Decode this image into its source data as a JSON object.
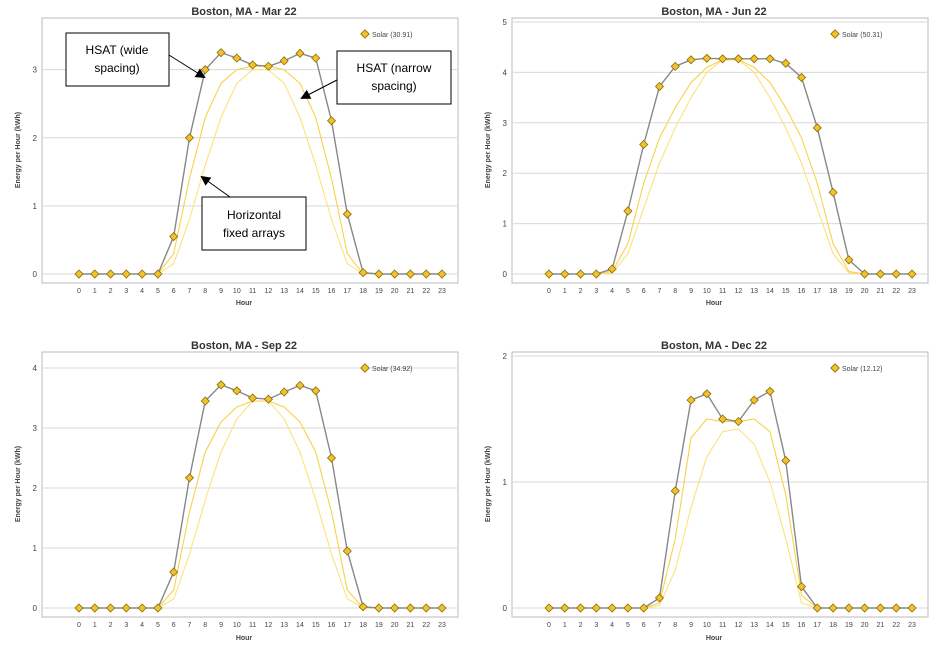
{
  "colors": {
    "main_line": "#888888",
    "marker_fill": "#f2c12e",
    "marker_stroke": "#8a6b00",
    "fixed_line": "#fde27a",
    "narrow_line": "#f7d24a",
    "grid": "#d9d9d9"
  },
  "chart_data": [
    {
      "type": "line",
      "title": "Boston, MA - Mar 22",
      "xlabel": "Hour",
      "ylabel": "Energy per Hour (kWh)",
      "ylim": [
        0,
        3.7
      ],
      "yticks": [
        0,
        1,
        2,
        3
      ],
      "x": [
        0,
        1,
        2,
        3,
        4,
        5,
        6,
        7,
        8,
        9,
        10,
        11,
        12,
        13,
        14,
        15,
        16,
        17,
        18,
        19,
        20,
        21,
        22,
        23
      ],
      "legend": "Solar (30.91)",
      "series": [
        {
          "name": "Solar",
          "values": [
            0,
            0,
            0,
            0,
            0,
            0,
            0.55,
            2.0,
            3.0,
            3.25,
            3.17,
            3.07,
            3.05,
            3.13,
            3.24,
            3.17,
            2.25,
            0.88,
            0.02,
            0,
            0,
            0,
            0,
            0
          ]
        },
        {
          "name": "HSAT (narrow spacing)",
          "values": [
            0,
            0,
            0,
            0,
            0,
            0,
            0.3,
            1.4,
            2.3,
            2.8,
            3.0,
            3.05,
            3.05,
            3.0,
            2.8,
            2.3,
            1.4,
            0.3,
            0,
            0,
            0,
            0,
            0,
            0
          ]
        },
        {
          "name": "Horizontal fixed arrays",
          "values": [
            0,
            0,
            0,
            0,
            0,
            0,
            0.15,
            0.8,
            1.6,
            2.3,
            2.8,
            3.0,
            3.0,
            2.8,
            2.3,
            1.6,
            0.8,
            0.15,
            0,
            0,
            0,
            0,
            0,
            0
          ]
        }
      ],
      "annotations": [
        {
          "label": "HSAT (wide spacing)",
          "lines": [
            "HSAT (wide",
            "spacing)"
          ]
        },
        {
          "label": "HSAT (narrow spacing)",
          "lines": [
            "HSAT (narrow",
            "spacing)"
          ]
        },
        {
          "label": "Horizontal fixed arrays",
          "lines": [
            "Horizontal",
            "fixed arrays"
          ]
        }
      ]
    },
    {
      "type": "line",
      "title": "Boston, MA - Jun 22",
      "xlabel": "Hour",
      "ylabel": "Energy per Hour (kWh)",
      "ylim": [
        0,
        5
      ],
      "yticks": [
        0,
        1,
        2,
        3,
        4,
        5
      ],
      "x": [
        0,
        1,
        2,
        3,
        4,
        5,
        6,
        7,
        8,
        9,
        10,
        11,
        12,
        13,
        14,
        15,
        16,
        17,
        18,
        19,
        20,
        21,
        22,
        23
      ],
      "legend": "Solar (50.31)",
      "series": [
        {
          "name": "Solar",
          "values": [
            0,
            0,
            0,
            0,
            0.1,
            1.25,
            2.57,
            3.72,
            4.12,
            4.25,
            4.28,
            4.27,
            4.27,
            4.27,
            4.27,
            4.18,
            3.9,
            2.9,
            1.62,
            0.28,
            0,
            0,
            0,
            0
          ]
        },
        {
          "name": "HSAT (narrow spacing)",
          "values": [
            0,
            0,
            0,
            0,
            0.05,
            0.6,
            1.8,
            2.7,
            3.3,
            3.8,
            4.1,
            4.25,
            4.25,
            4.1,
            3.8,
            3.3,
            2.7,
            1.8,
            0.6,
            0.05,
            0,
            0,
            0,
            0
          ]
        },
        {
          "name": "Horizontal fixed arrays",
          "values": [
            0,
            0,
            0,
            0,
            0.02,
            0.4,
            1.3,
            2.2,
            2.9,
            3.5,
            4.0,
            4.25,
            4.25,
            4.0,
            3.5,
            2.9,
            2.2,
            1.3,
            0.4,
            0.02,
            0,
            0,
            0,
            0
          ]
        }
      ]
    },
    {
      "type": "line",
      "title": "Boston, MA - Sep 22",
      "xlabel": "Hour",
      "ylabel": "Energy per Hour (kWh)",
      "ylim": [
        0,
        4.2
      ],
      "yticks": [
        0,
        1,
        2,
        3,
        4
      ],
      "x": [
        0,
        1,
        2,
        3,
        4,
        5,
        6,
        7,
        8,
        9,
        10,
        11,
        12,
        13,
        14,
        15,
        16,
        17,
        18,
        19,
        20,
        21,
        22,
        23
      ],
      "legend": "Solar (34.92)",
      "series": [
        {
          "name": "Solar",
          "values": [
            0,
            0,
            0,
            0,
            0,
            0,
            0.6,
            2.17,
            3.45,
            3.72,
            3.62,
            3.5,
            3.48,
            3.6,
            3.71,
            3.62,
            2.5,
            0.95,
            0.02,
            0,
            0,
            0,
            0,
            0
          ]
        },
        {
          "name": "HSAT (narrow spacing)",
          "values": [
            0,
            0,
            0,
            0,
            0,
            0,
            0.3,
            1.6,
            2.6,
            3.1,
            3.35,
            3.45,
            3.45,
            3.35,
            3.1,
            2.6,
            1.6,
            0.3,
            0,
            0,
            0,
            0,
            0,
            0
          ]
        },
        {
          "name": "Horizontal fixed arrays",
          "values": [
            0,
            0,
            0,
            0,
            0,
            0,
            0.15,
            0.9,
            1.8,
            2.6,
            3.15,
            3.45,
            3.45,
            3.15,
            2.6,
            1.8,
            0.9,
            0.15,
            0,
            0,
            0,
            0,
            0,
            0
          ]
        }
      ]
    },
    {
      "type": "line",
      "title": "Boston, MA - Dec 22",
      "xlabel": "Hour",
      "ylabel": "Energy per Hour (kWh)",
      "ylim": [
        0,
        2
      ],
      "yticks": [
        0,
        1,
        2
      ],
      "x": [
        0,
        1,
        2,
        3,
        4,
        5,
        6,
        7,
        8,
        9,
        10,
        11,
        12,
        13,
        14,
        15,
        16,
        17,
        18,
        19,
        20,
        21,
        22,
        23
      ],
      "legend": "Solar (12.12)",
      "series": [
        {
          "name": "Solar",
          "values": [
            0,
            0,
            0,
            0,
            0,
            0,
            0,
            0.08,
            0.93,
            1.65,
            1.7,
            1.5,
            1.48,
            1.65,
            1.72,
            1.17,
            0.17,
            0,
            0,
            0,
            0,
            0,
            0,
            0
          ]
        },
        {
          "name": "HSAT (narrow spacing)",
          "values": [
            0,
            0,
            0,
            0,
            0,
            0,
            0,
            0.04,
            0.55,
            1.35,
            1.5,
            1.48,
            1.48,
            1.5,
            1.4,
            0.9,
            0.1,
            0,
            0,
            0,
            0,
            0,
            0,
            0
          ]
        },
        {
          "name": "Horizontal fixed arrays",
          "values": [
            0,
            0,
            0,
            0,
            0,
            0,
            0,
            0.02,
            0.3,
            0.8,
            1.2,
            1.4,
            1.42,
            1.3,
            1.0,
            0.55,
            0.04,
            0,
            0,
            0,
            0,
            0,
            0,
            0
          ]
        }
      ]
    }
  ]
}
